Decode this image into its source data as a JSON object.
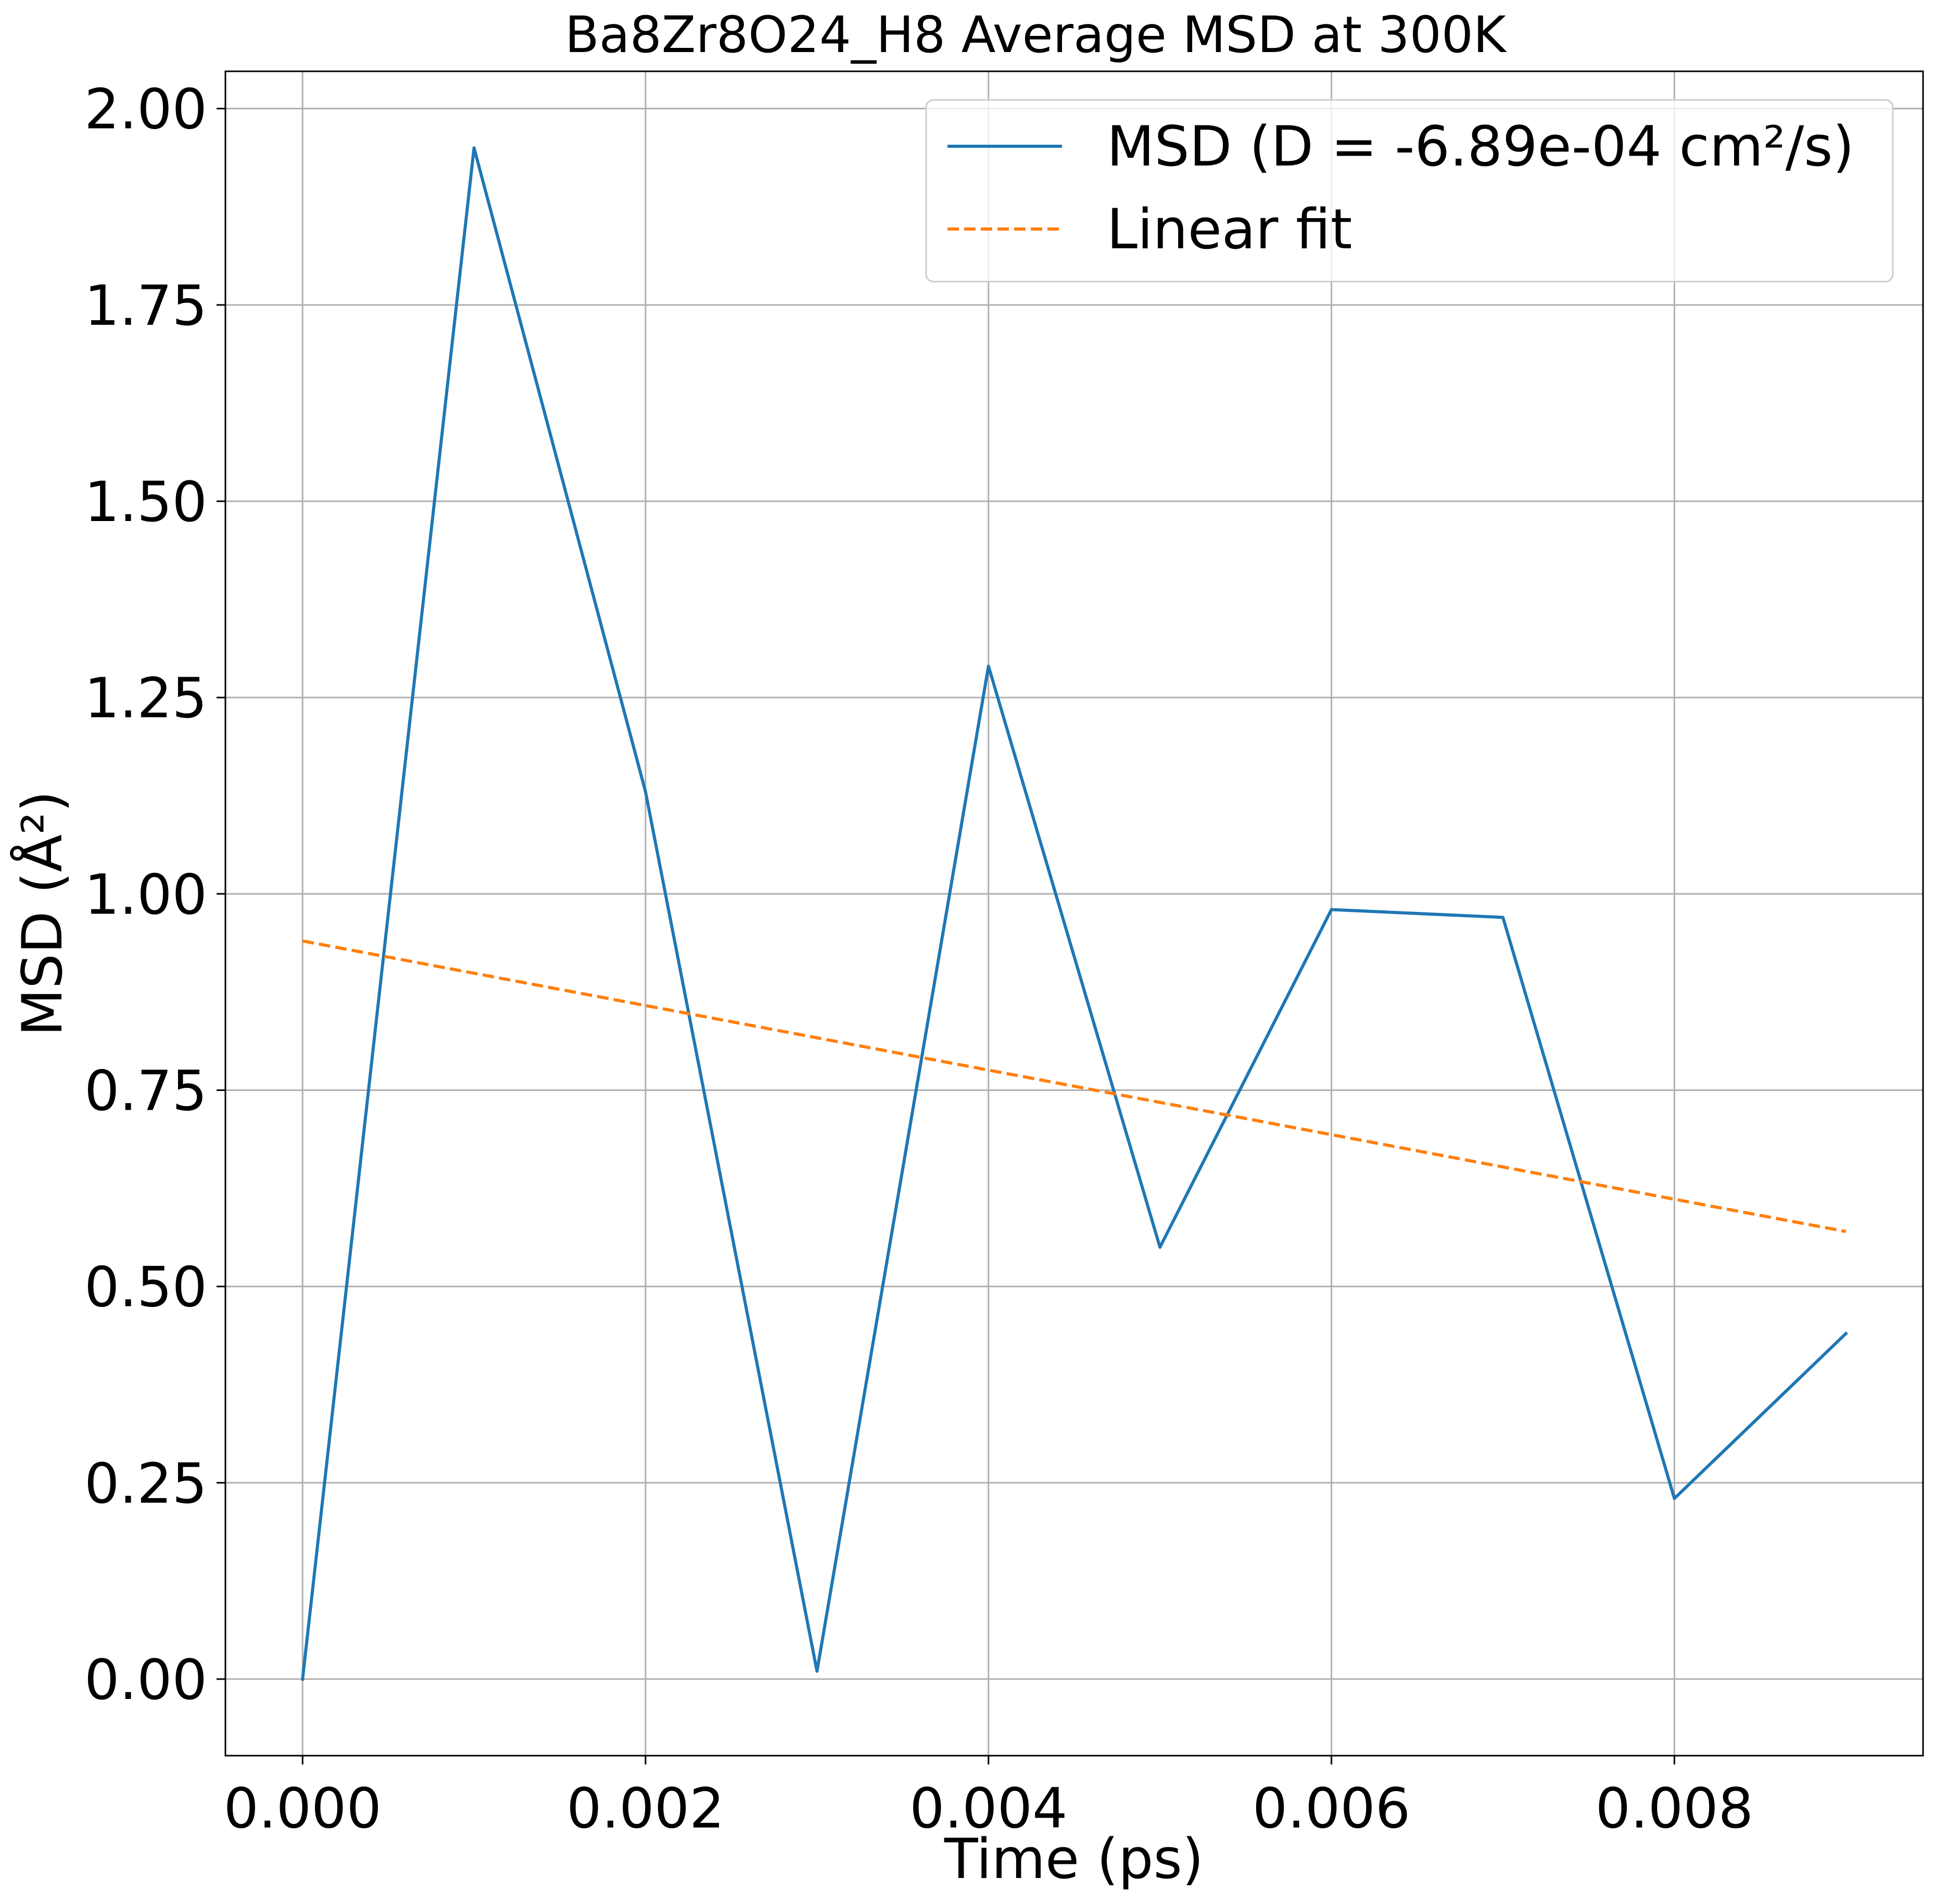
{
  "chart_data": {
    "type": "line",
    "title": "Ba8Zr8O24_H8 Average MSD at 300K",
    "xlabel": "Time (ps)",
    "ylabel": "MSD (Å²)",
    "xlim": [
      -0.00045,
      0.00945
    ],
    "ylim": [
      -0.0975,
      2.0475
    ],
    "xticks": [
      0.0,
      0.002,
      0.004,
      0.006,
      0.008
    ],
    "xtick_labels": [
      "0.000",
      "0.002",
      "0.004",
      "0.006",
      "0.008"
    ],
    "yticks": [
      0.0,
      0.25,
      0.5,
      0.75,
      1.0,
      1.25,
      1.5,
      1.75,
      2.0
    ],
    "ytick_labels": [
      "0.00",
      "0.25",
      "0.50",
      "0.75",
      "1.00",
      "1.25",
      "1.50",
      "1.75",
      "2.00"
    ],
    "grid": true,
    "legend_position": "upper right",
    "series": [
      {
        "name": "MSD (D = -6.89e-04 cm²/s)",
        "style": "solid",
        "color": "#1f77b4",
        "x": [
          0.0,
          0.001,
          0.002,
          0.003,
          0.004,
          0.005,
          0.006,
          0.007,
          0.008,
          0.009
        ],
        "y": [
          0.0,
          1.95,
          1.13,
          0.01,
          1.29,
          0.55,
          0.98,
          0.97,
          0.23,
          0.44
        ]
      },
      {
        "name": "Linear fit",
        "style": "dashed",
        "color": "#ff7f0e",
        "x": [
          0.0,
          0.009
        ],
        "y": [
          0.94,
          0.57
        ]
      }
    ]
  }
}
